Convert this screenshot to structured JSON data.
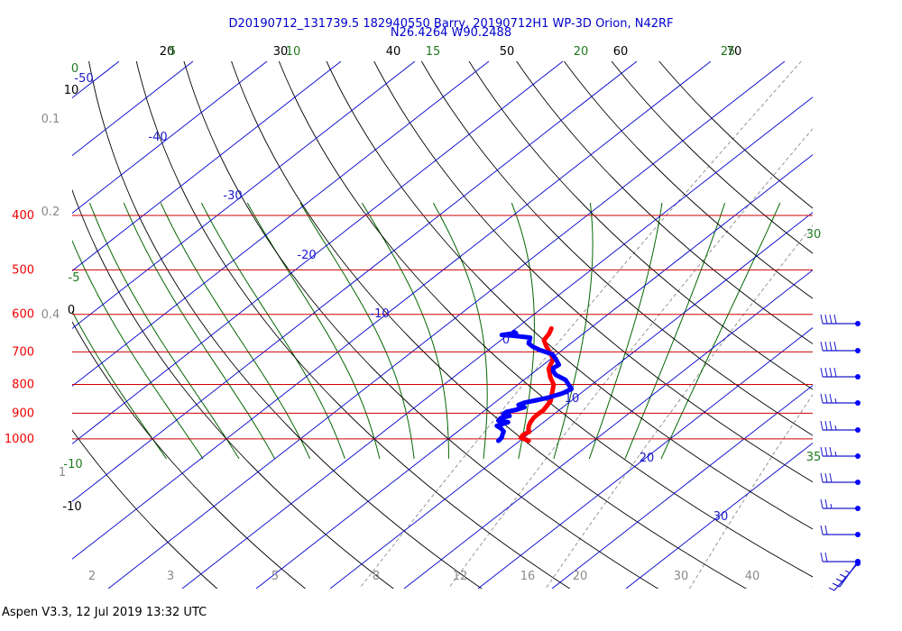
{
  "chart_data": {
    "type": "line",
    "title": "D20190712_131739.5 182940550 Barry, 20190712H1 WP-3D Orion, N42RF",
    "subtitle": "N26.4264 W90.2488",
    "footer": "Aspen V3.3, 12 Jul 2019  13:32 UTC",
    "pressure_labels": [
      "400",
      "500",
      "600",
      "700",
      "800",
      "900",
      "1000"
    ],
    "isotherm_labels": [
      "-50",
      "-40",
      "-30",
      "-20",
      "-10",
      "0",
      "10",
      "20",
      "30"
    ],
    "theta_labels_top": [
      "20",
      "30",
      "40",
      "50",
      "60",
      "70"
    ],
    "theta_labels_left": [
      "10",
      "0",
      "-10"
    ],
    "moist_adiabat_labels_top": [
      "5",
      "10",
      "15",
      "20",
      "25"
    ],
    "moist_adiabat_labels_side": [
      "0",
      "-5",
      "-10",
      "30",
      "35"
    ],
    "mixing_ratio_labels": [
      "2",
      "3",
      "5",
      "8",
      "12",
      "16",
      "20",
      "30",
      "40"
    ],
    "mixing_ratio_labels_left": [
      "0.1",
      "0.2",
      "0.4",
      "1"
    ],
    "temperature_profile": {
      "color": "#ff0000",
      "points": [
        [
          21.2,
          1008
        ],
        [
          19.6,
          995
        ],
        [
          19.4,
          983
        ],
        [
          19.7,
          971
        ],
        [
          19.1,
          960
        ],
        [
          18.6,
          947
        ],
        [
          18.2,
          933
        ],
        [
          17.9,
          918
        ],
        [
          17.8,
          905
        ],
        [
          17.9,
          890
        ],
        [
          17.6,
          873
        ],
        [
          17.3,
          857
        ],
        [
          14.8,
          800
        ],
        [
          13.2,
          778
        ],
        [
          11.4,
          750
        ],
        [
          10.3,
          720
        ],
        [
          8.6,
          700
        ],
        [
          7.1,
          683
        ],
        [
          5.8,
          667
        ],
        [
          5.4,
          650
        ],
        [
          4.8,
          636
        ]
      ]
    },
    "dewpoint_profile": {
      "color": "#0000ff",
      "points": [
        [
          17.1,
          1008
        ],
        [
          17.0,
          995
        ],
        [
          16.6,
          983
        ],
        [
          16.2,
          970
        ],
        [
          15.3,
          958
        ],
        [
          14.3,
          948
        ],
        [
          15.2,
          934
        ],
        [
          13.6,
          928
        ],
        [
          13.5,
          918
        ],
        [
          14.3,
          910
        ],
        [
          13.1,
          903
        ],
        [
          13.2,
          895
        ],
        [
          14.1,
          888
        ],
        [
          14.8,
          878
        ],
        [
          13.6,
          870
        ],
        [
          14.0,
          862
        ],
        [
          15.0,
          855
        ],
        [
          16.2,
          846
        ],
        [
          17.5,
          830
        ],
        [
          18.0,
          815
        ],
        [
          15.6,
          785
        ],
        [
          13.4,
          769
        ],
        [
          12.4,
          757
        ],
        [
          11.9,
          748
        ],
        [
          12.1,
          738
        ],
        [
          10.7,
          721
        ],
        [
          9.3,
          706
        ],
        [
          7.0,
          695
        ],
        [
          5.4,
          685
        ],
        [
          4.3,
          676
        ],
        [
          3.5,
          660
        ],
        [
          0.8,
          655
        ],
        [
          -0.8,
          653
        ],
        [
          0.8,
          648
        ],
        [
          0.3,
          645
        ]
      ]
    },
    "wind_barbs": [
      {
        "p": 650,
        "knots": 40
      },
      {
        "p": 675,
        "knots": 40
      },
      {
        "p": 700,
        "knots": 40
      },
      {
        "p": 725,
        "knots": 35
      },
      {
        "p": 750,
        "knots": 35
      },
      {
        "p": 775,
        "knots": 35
      },
      {
        "p": 800,
        "knots": 30
      },
      {
        "p": 825,
        "knots": 25
      },
      {
        "p": 850,
        "knots": 20
      },
      {
        "p": 875,
        "knots": 20
      },
      {
        "p": 900,
        "knots": 20
      },
      {
        "p": 925,
        "knots": 40
      }
    ],
    "ylim": [
      400,
      1000
    ],
    "xlim": [
      -45,
      45
    ],
    "colors": {
      "isobar": "#cc0000",
      "isotherm": "#0000cc",
      "dry_adiabat": "#000000",
      "moist_adiabat": "#006600",
      "mixing_ratio": "#8a8a8a"
    }
  }
}
